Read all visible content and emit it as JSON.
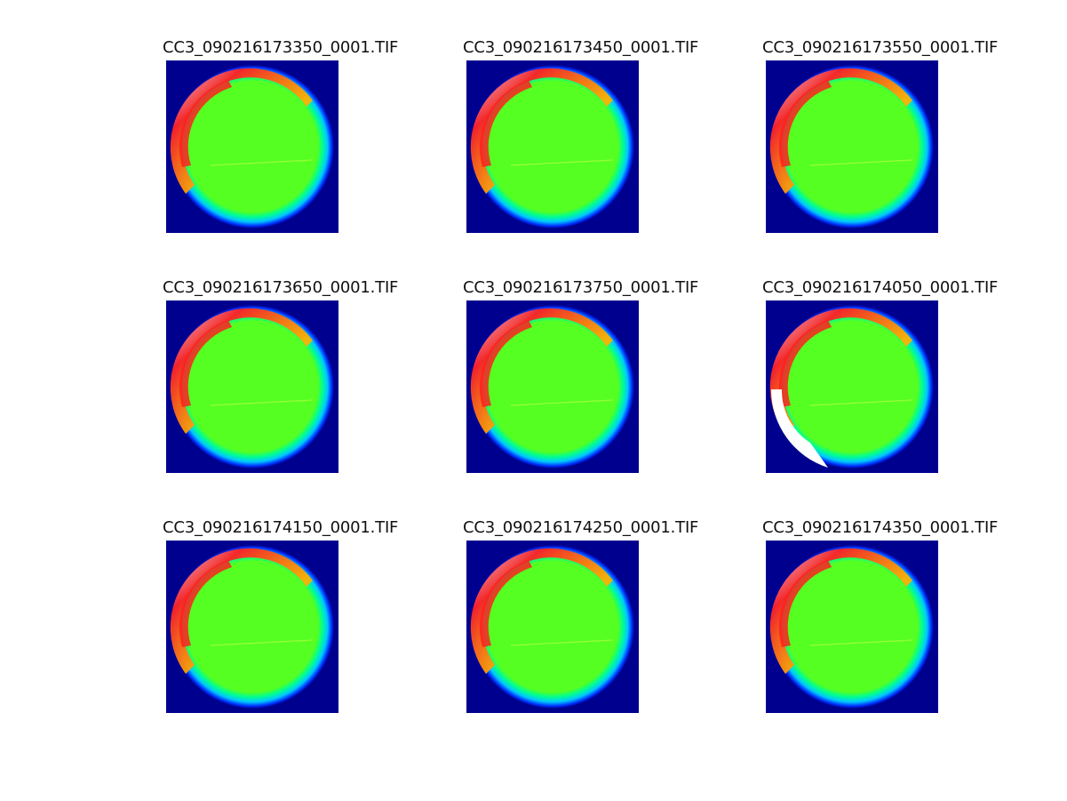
{
  "figure": {
    "panels": [
      {
        "title": "CC3_090216173350_0001.TIF",
        "variant": "normal"
      },
      {
        "title": "CC3_090216173450_0001.TIF",
        "variant": "normal"
      },
      {
        "title": "CC3_090216173550_0001.TIF",
        "variant": "normal"
      },
      {
        "title": "CC3_090216173650_0001.TIF",
        "variant": "normal"
      },
      {
        "title": "CC3_090216173750_0001.TIF",
        "variant": "normal"
      },
      {
        "title": "CC3_090216174050_0001.TIF",
        "variant": "saturated"
      },
      {
        "title": "CC3_090216174150_0001.TIF",
        "variant": "normal"
      },
      {
        "title": "CC3_090216174250_0001.TIF",
        "variant": "normal"
      },
      {
        "title": "CC3_090216174350_0001.TIF",
        "variant": "normal"
      }
    ],
    "colormap": {
      "background": "#00008f",
      "outer_ring": "#0030ff",
      "mid_ring": "#00c8ff",
      "inner_ring": "#00ff90",
      "disk": "#55ff22",
      "hot": "#ff2020",
      "warm": "#ffb000",
      "saturated": "#ffffff"
    }
  }
}
